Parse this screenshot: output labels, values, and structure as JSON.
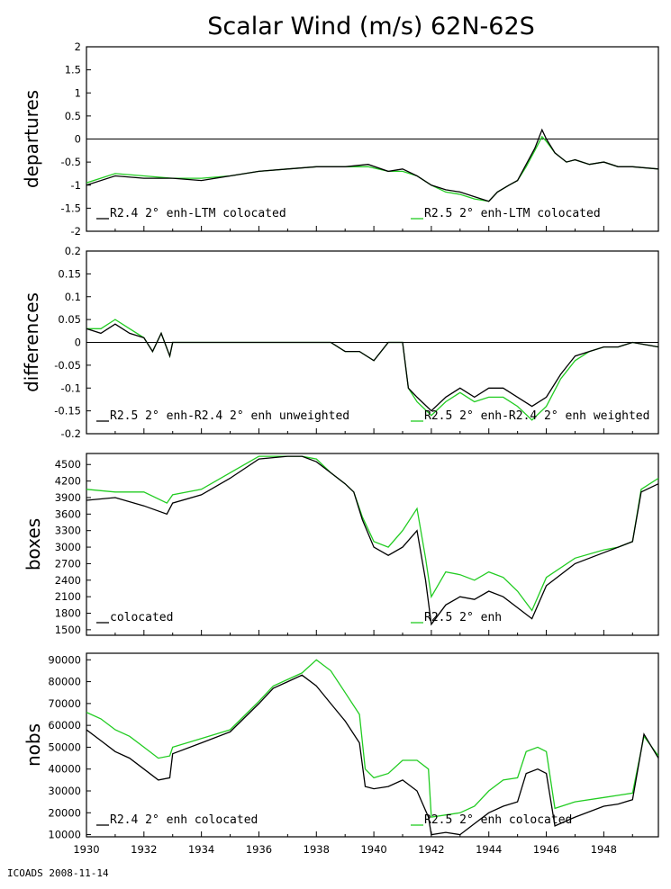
{
  "title": "Scalar Wind (m/s) 62N-62S",
  "footer": "ICOADS 2008-11-14",
  "colors": {
    "black": "#000000",
    "green": "#22cc22"
  },
  "x_axis": {
    "range": [
      1930,
      1949.9
    ],
    "tick_labels": [
      "1930",
      "1932",
      "1934",
      "1936",
      "1938",
      "1940",
      "1942",
      "1944",
      "1946",
      "1948"
    ]
  },
  "chart_data": [
    {
      "type": "line",
      "ylabel": "departures",
      "ylim": [
        -2,
        2
      ],
      "y_ticks": [
        -2,
        -1.5,
        -1,
        -0.5,
        0,
        0.5,
        1,
        1.5,
        2
      ],
      "y_tick_labels": [
        "-2",
        "-1.5",
        "-1",
        "-0.5",
        "0",
        "0.5",
        "1",
        "1.5",
        "2"
      ],
      "zero_line": true,
      "legend": [
        "R2.4 2° enh-LTM colocated",
        "R2.5 2° enh-LTM colocated"
      ],
      "series": [
        {
          "name": "R2.4 2° enh-LTM colocated",
          "color": "black",
          "x": [
            1930,
            1931,
            1932,
            1933,
            1934,
            1935,
            1936,
            1937,
            1938,
            1939,
            1939.8,
            1940.5,
            1941,
            1941.5,
            1942,
            1942.5,
            1943,
            1943.5,
            1944,
            1944.3,
            1944.7,
            1945,
            1945.3,
            1945.6,
            1945.85,
            1946,
            1946.3,
            1946.7,
            1947,
            1947.5,
            1948,
            1948.5,
            1949,
            1949.9
          ],
          "values": [
            -1.0,
            -0.8,
            -0.85,
            -0.85,
            -0.9,
            -0.8,
            -0.7,
            -0.65,
            -0.6,
            -0.6,
            -0.55,
            -0.7,
            -0.65,
            -0.8,
            -1.0,
            -1.1,
            -1.15,
            -1.25,
            -1.35,
            -1.15,
            -1.0,
            -0.9,
            -0.55,
            -0.2,
            0.2,
            0.0,
            -0.3,
            -0.5,
            -0.45,
            -0.55,
            -0.5,
            -0.6,
            -0.6,
            -0.65
          ]
        },
        {
          "name": "R2.5 2° enh-LTM colocated",
          "color": "green",
          "x": [
            1930,
            1931,
            1932,
            1933,
            1934,
            1935,
            1936,
            1937,
            1938,
            1939,
            1939.8,
            1940.5,
            1941,
            1941.5,
            1942,
            1942.5,
            1943,
            1943.5,
            1944,
            1944.3,
            1944.7,
            1945,
            1945.3,
            1945.6,
            1945.85,
            1946,
            1946.3,
            1946.7,
            1947,
            1947.5,
            1948,
            1948.5,
            1949,
            1949.9
          ],
          "values": [
            -0.95,
            -0.75,
            -0.8,
            -0.85,
            -0.85,
            -0.8,
            -0.7,
            -0.65,
            -0.6,
            -0.6,
            -0.6,
            -0.7,
            -0.7,
            -0.8,
            -1.0,
            -1.15,
            -1.2,
            -1.3,
            -1.35,
            -1.15,
            -1.0,
            -0.9,
            -0.6,
            -0.25,
            0.05,
            -0.05,
            -0.3,
            -0.5,
            -0.45,
            -0.55,
            -0.5,
            -0.6,
            -0.6,
            -0.65
          ]
        }
      ]
    },
    {
      "type": "line",
      "ylabel": "differences",
      "ylim": [
        -0.2,
        0.2
      ],
      "y_ticks": [
        -0.2,
        -0.15,
        -0.1,
        -0.05,
        0,
        0.05,
        0.1,
        0.15,
        0.2
      ],
      "y_tick_labels": [
        "-0.2",
        "-0.15",
        "-0.1",
        "-0.05",
        "0",
        "0.05",
        "0.1",
        "0.15",
        "0.2"
      ],
      "zero_line": true,
      "legend": [
        "R2.5 2° enh-R2.4 2° enh unweighted",
        "R2.5 2° enh-R2.4 2° enh weighted"
      ],
      "series": [
        {
          "name": "R2.5 2° enh-R2.4 2° enh unweighted",
          "color": "black",
          "x": [
            1930,
            1930.5,
            1931,
            1931.5,
            1932,
            1932.3,
            1932.6,
            1932.9,
            1933,
            1934,
            1935,
            1936,
            1937,
            1937.5,
            1938,
            1938.5,
            1939,
            1939.5,
            1940,
            1940.5,
            1941,
            1941.2,
            1941.5,
            1942,
            1942.5,
            1943,
            1943.5,
            1944,
            1944.5,
            1945,
            1945.5,
            1946,
            1946.5,
            1947,
            1947.5,
            1948,
            1948.5,
            1949,
            1949.9
          ],
          "values": [
            0.03,
            0.02,
            0.04,
            0.02,
            0.01,
            -0.02,
            0.02,
            -0.03,
            0.0,
            0.0,
            0.0,
            0.0,
            0.0,
            0.0,
            0.0,
            0.0,
            -0.02,
            -0.02,
            -0.04,
            0.0,
            0.0,
            -0.1,
            -0.12,
            -0.15,
            -0.12,
            -0.1,
            -0.12,
            -0.1,
            -0.1,
            -0.12,
            -0.14,
            -0.12,
            -0.07,
            -0.03,
            -0.02,
            -0.01,
            -0.01,
            0.0,
            -0.01
          ]
        },
        {
          "name": "R2.5 2° enh-R2.4 2° enh weighted",
          "color": "green",
          "x": [
            1930,
            1930.5,
            1931,
            1931.5,
            1932,
            1932.3,
            1932.6,
            1932.9,
            1933,
            1934,
            1935,
            1936,
            1937,
            1937.5,
            1938,
            1938.5,
            1939,
            1939.5,
            1940,
            1940.5,
            1941,
            1941.2,
            1941.5,
            1942,
            1942.5,
            1943,
            1943.5,
            1944,
            1944.5,
            1945,
            1945.5,
            1946,
            1946.5,
            1947,
            1947.5,
            1948,
            1948.5,
            1949,
            1949.9
          ],
          "values": [
            0.03,
            0.03,
            0.05,
            0.03,
            0.01,
            -0.02,
            0.02,
            -0.03,
            0.0,
            0.0,
            0.0,
            0.0,
            0.0,
            0.0,
            0.0,
            0.0,
            -0.02,
            -0.02,
            -0.04,
            0.0,
            0.0,
            -0.1,
            -0.13,
            -0.16,
            -0.13,
            -0.11,
            -0.13,
            -0.12,
            -0.12,
            -0.14,
            -0.17,
            -0.14,
            -0.08,
            -0.04,
            -0.02,
            -0.01,
            -0.01,
            0.0,
            -0.01
          ]
        }
      ]
    },
    {
      "type": "line",
      "ylabel": "boxes",
      "ylim": [
        1400,
        4700
      ],
      "y_ticks": [
        1500,
        1800,
        2100,
        2400,
        2700,
        3000,
        3300,
        3600,
        3900,
        4200,
        4500
      ],
      "y_tick_labels": [
        "1500",
        "1800",
        "2100",
        "2400",
        "2700",
        "3000",
        "3300",
        "3600",
        "3900",
        "4200",
        "4500"
      ],
      "zero_line": false,
      "legend": [
        "colocated",
        "R2.5 2° enh"
      ],
      "series": [
        {
          "name": "colocated",
          "color": "black",
          "x": [
            1930,
            1931,
            1932,
            1932.8,
            1933,
            1934,
            1935,
            1936,
            1937,
            1937.5,
            1938,
            1938.5,
            1939,
            1939.3,
            1939.6,
            1940,
            1940.5,
            1941,
            1941.5,
            1941.8,
            1942,
            1942.5,
            1943,
            1943.5,
            1944,
            1944.5,
            1945,
            1945.5,
            1946,
            1947,
            1948,
            1948.5,
            1949,
            1949.3,
            1949.9
          ],
          "values": [
            3850,
            3900,
            3750,
            3600,
            3800,
            3950,
            4250,
            4600,
            4650,
            4650,
            4550,
            4350,
            4150,
            4000,
            3500,
            3000,
            2850,
            3000,
            3300,
            2400,
            1600,
            1950,
            2100,
            2050,
            2200,
            2100,
            1900,
            1700,
            2300,
            2700,
            2900,
            3000,
            3100,
            4000,
            4150
          ]
        },
        {
          "name": "R2.5 2° enh",
          "color": "green",
          "x": [
            1930,
            1931,
            1932,
            1932.8,
            1933,
            1934,
            1935,
            1936,
            1937,
            1937.5,
            1938,
            1938.5,
            1939,
            1939.3,
            1939.6,
            1940,
            1940.5,
            1941,
            1941.5,
            1941.8,
            1942,
            1942.5,
            1943,
            1943.5,
            1944,
            1944.5,
            1945,
            1945.5,
            1946,
            1947,
            1948,
            1948.5,
            1949,
            1949.3,
            1949.9
          ],
          "values": [
            4050,
            4000,
            4000,
            3800,
            3950,
            4050,
            4350,
            4650,
            4650,
            4650,
            4600,
            4350,
            4150,
            4000,
            3550,
            3100,
            3000,
            3300,
            3700,
            2800,
            2100,
            2550,
            2500,
            2400,
            2550,
            2450,
            2200,
            1850,
            2450,
            2800,
            2950,
            3000,
            3100,
            4050,
            4250
          ]
        }
      ]
    },
    {
      "type": "line",
      "ylabel": "nobs",
      "ylim": [
        9000,
        93000
      ],
      "y_ticks": [
        10000,
        20000,
        30000,
        40000,
        50000,
        60000,
        70000,
        80000,
        90000
      ],
      "y_tick_labels": [
        "10000",
        "20000",
        "30000",
        "40000",
        "50000",
        "60000",
        "70000",
        "80000",
        "90000"
      ],
      "zero_line": false,
      "legend": [
        "R2.4 2° enh colocated",
        "R2.5 2° enh colocated"
      ],
      "series": [
        {
          "name": "R2.4 2° enh colocated",
          "color": "black",
          "x": [
            1930,
            1930.5,
            1931,
            1931.5,
            1932,
            1932.5,
            1932.9,
            1933,
            1934,
            1935,
            1936,
            1936.5,
            1937,
            1937.5,
            1938,
            1938.5,
            1939,
            1939.5,
            1939.7,
            1940,
            1940.5,
            1941,
            1941.5,
            1941.9,
            1942,
            1942.5,
            1943,
            1943.5,
            1944,
            1944.5,
            1945,
            1945.3,
            1945.7,
            1946,
            1946.3,
            1947,
            1948,
            1948.5,
            1949,
            1949.4,
            1949.9
          ],
          "values": [
            58000,
            53000,
            48000,
            45000,
            40000,
            35000,
            36000,
            47000,
            52000,
            57000,
            70000,
            77000,
            80000,
            83000,
            78000,
            70000,
            62000,
            52000,
            32000,
            31000,
            32000,
            35000,
            30000,
            18000,
            10000,
            11000,
            10000,
            15000,
            20000,
            23000,
            25000,
            38000,
            40000,
            38000,
            14000,
            18000,
            23000,
            24000,
            26000,
            56000,
            45000
          ]
        },
        {
          "name": "R2.5 2° enh colocated",
          "color": "green",
          "x": [
            1930,
            1930.5,
            1931,
            1931.5,
            1932,
            1932.5,
            1932.9,
            1933,
            1934,
            1935,
            1936,
            1936.5,
            1937,
            1937.5,
            1938,
            1938.5,
            1939,
            1939.5,
            1939.7,
            1940,
            1940.5,
            1941,
            1941.5,
            1941.9,
            1942,
            1942.5,
            1943,
            1943.5,
            1944,
            1944.5,
            1945,
            1945.3,
            1945.7,
            1946,
            1946.3,
            1947,
            1948,
            1948.5,
            1949,
            1949.4,
            1949.9
          ],
          "values": [
            66000,
            63000,
            58000,
            55000,
            50000,
            45000,
            46000,
            50000,
            54000,
            58000,
            71000,
            78000,
            81000,
            84000,
            90000,
            85000,
            75000,
            65000,
            40000,
            36000,
            38000,
            44000,
            44000,
            40000,
            18000,
            19000,
            20000,
            23000,
            30000,
            35000,
            36000,
            48000,
            50000,
            48000,
            22000,
            25000,
            27000,
            28000,
            29000,
            55000,
            46000
          ]
        }
      ]
    }
  ]
}
